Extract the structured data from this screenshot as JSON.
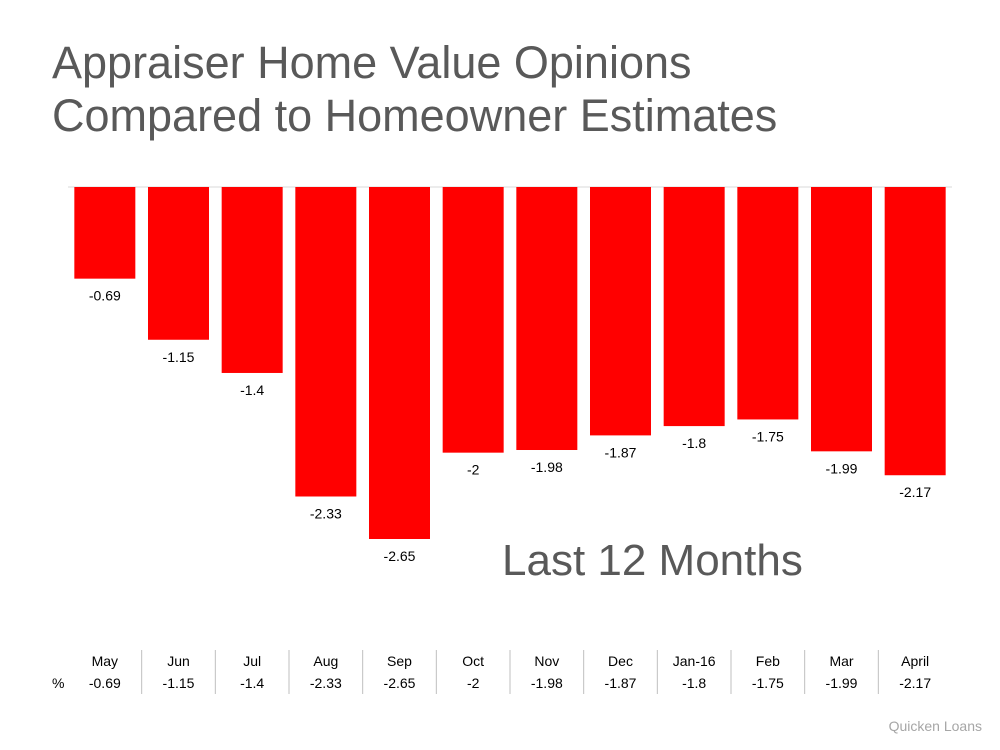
{
  "title": "Appraiser Home Value Opinions\nCompared to Homeowner Estimates",
  "subtitle": "Last 12 Months",
  "source": "Quicken Loans",
  "table": {
    "row_label": "%"
  },
  "colors": {
    "bar": "#ff0000",
    "text": "#595959",
    "baseline": "#d9d9d9"
  },
  "chart_data": {
    "type": "bar",
    "categories": [
      "May",
      "Jun",
      "Jul",
      "Aug",
      "Sep",
      "Oct",
      "Nov",
      "Dec",
      "Jan-16",
      "Feb",
      "Mar",
      "April"
    ],
    "values": [
      -0.69,
      -1.15,
      -1.4,
      -2.33,
      -2.65,
      -2,
      -1.98,
      -1.87,
      -1.8,
      -1.75,
      -1.99,
      -2.17
    ],
    "value_labels": [
      "-0.69",
      "-1.15",
      "-1.4",
      "-2.33",
      "-2.65",
      "-2",
      "-1.98",
      "-1.87",
      "-1.8",
      "-1.75",
      "-1.99",
      "-2.17"
    ],
    "ylim": [
      -2.65,
      0
    ],
    "grid": false,
    "data_table": true
  }
}
